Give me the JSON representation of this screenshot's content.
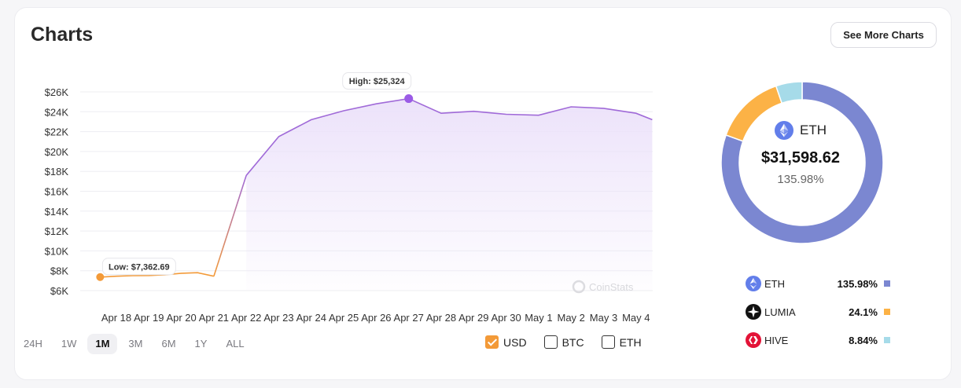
{
  "header": {
    "title": "Charts",
    "more_label": "See More Charts"
  },
  "periods": [
    {
      "label": "24H",
      "active": false
    },
    {
      "label": "1W",
      "active": false
    },
    {
      "label": "1M",
      "active": true
    },
    {
      "label": "3M",
      "active": false
    },
    {
      "label": "6M",
      "active": false
    },
    {
      "label": "1Y",
      "active": false
    },
    {
      "label": "ALL",
      "active": false
    }
  ],
  "currencies": [
    {
      "label": "USD",
      "checked": true
    },
    {
      "label": "BTC",
      "checked": false
    },
    {
      "label": "ETH",
      "checked": false
    }
  ],
  "watermark": "CoinStats",
  "chart_data": [
    {
      "type": "area",
      "x": [
        "Apr 18",
        "Apr 19",
        "Apr 20",
        "Apr 21",
        "Apr 22",
        "Apr 23",
        "Apr 24",
        "Apr 25",
        "Apr 26",
        "Apr 27",
        "Apr 28",
        "Apr 29",
        "Apr 30",
        "May 1",
        "May 2",
        "May 3",
        "May 4"
      ],
      "ytick_labels": [
        "$6K",
        "$8K",
        "$10K",
        "$12K",
        "$14K",
        "$16K",
        "$18K",
        "$20K",
        "$22K",
        "$24K",
        "$26K"
      ],
      "ylim": [
        6000,
        26000
      ],
      "points": [
        [
          -0.5,
          7362.69
        ],
        [
          0,
          7450
        ],
        [
          0.5,
          7500
        ],
        [
          1,
          7520
        ],
        [
          1.5,
          7600
        ],
        [
          2,
          7750
        ],
        [
          2.5,
          7800
        ],
        [
          3,
          7450
        ],
        [
          4,
          17600
        ],
        [
          5,
          21500
        ],
        [
          6,
          23200
        ],
        [
          7,
          24100
        ],
        [
          8,
          24800
        ],
        [
          9,
          25324
        ],
        [
          10,
          23850
        ],
        [
          11,
          24050
        ],
        [
          12,
          23750
        ],
        [
          13,
          23650
        ],
        [
          14,
          24500
        ],
        [
          15,
          24350
        ],
        [
          16,
          23850
        ],
        [
          16.5,
          23200
        ]
      ],
      "low": {
        "label": "Low: $7,362.69",
        "value": 7362.69
      },
      "high": {
        "label": "High: $25,324",
        "value": 25324
      },
      "colors": {
        "rise": "#f39a38",
        "main": "#a06ad8",
        "fill": "#ece2fa"
      },
      "grid": true,
      "series": []
    },
    {
      "type": "pie",
      "donut": true,
      "center": {
        "symbol": "ETH",
        "value": "$31,598.62",
        "percent": "135.98%"
      },
      "slices": [
        {
          "name": "ETH",
          "percent": "135.98%",
          "value": 79.2,
          "color": "#7b87d1",
          "icon": "ethereum-icon"
        },
        {
          "name": "LUMIA",
          "percent": "24.1%",
          "value": 14.0,
          "color": "#fcb246",
          "icon": "lumia-icon"
        },
        {
          "name": "HIVE",
          "percent": "8.84%",
          "value": 5.15,
          "color": "#a6dbe9",
          "icon": "hive-icon"
        }
      ]
    }
  ]
}
